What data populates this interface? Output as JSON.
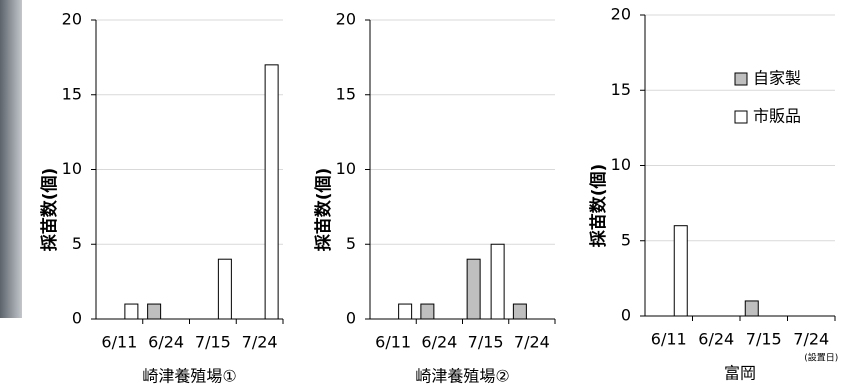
{
  "chart_data": [
    {
      "type": "bar",
      "xlabel": "崎津養殖場①",
      "ylabel": "採苗数(個)",
      "categories": [
        "6/11",
        "6/24",
        "7/15",
        "7/24"
      ],
      "series": [
        {
          "color": "#bfbfbf",
          "values": [
            0,
            1,
            0,
            0
          ]
        },
        {
          "color": "#ffffff",
          "values": [
            1,
            0,
            4,
            17
          ]
        }
      ],
      "ylim": [
        0,
        20
      ],
      "yticks": [
        0,
        5,
        10,
        15,
        20
      ],
      "grid": true
    },
    {
      "type": "bar",
      "xlabel": "崎津養殖場②",
      "ylabel": "採苗数(個)",
      "categories": [
        "6/11",
        "6/24",
        "7/15",
        "7/24"
      ],
      "series": [
        {
          "color": "#bfbfbf",
          "values": [
            0,
            1,
            4,
            1
          ]
        },
        {
          "color": "#ffffff",
          "values": [
            1,
            0,
            5,
            0
          ]
        }
      ],
      "ylim": [
        0,
        20
      ],
      "yticks": [
        0,
        5,
        10,
        15,
        20
      ],
      "grid": true
    },
    {
      "type": "bar",
      "xlabel": "富岡",
      "ylabel": "採苗数(個)",
      "annotation": "(設置日)",
      "categories": [
        "6/11",
        "6/24",
        "7/15",
        "7/24"
      ],
      "series": [
        {
          "name": "自家製",
          "color": "#bfbfbf",
          "values": [
            0,
            0,
            1,
            0
          ]
        },
        {
          "name": "市販品",
          "color": "#ffffff",
          "values": [
            6,
            0,
            0,
            0
          ]
        }
      ],
      "ylim": [
        0,
        20
      ],
      "yticks": [
        0,
        5,
        10,
        15,
        20
      ],
      "grid": true,
      "legend": "upper right"
    }
  ]
}
